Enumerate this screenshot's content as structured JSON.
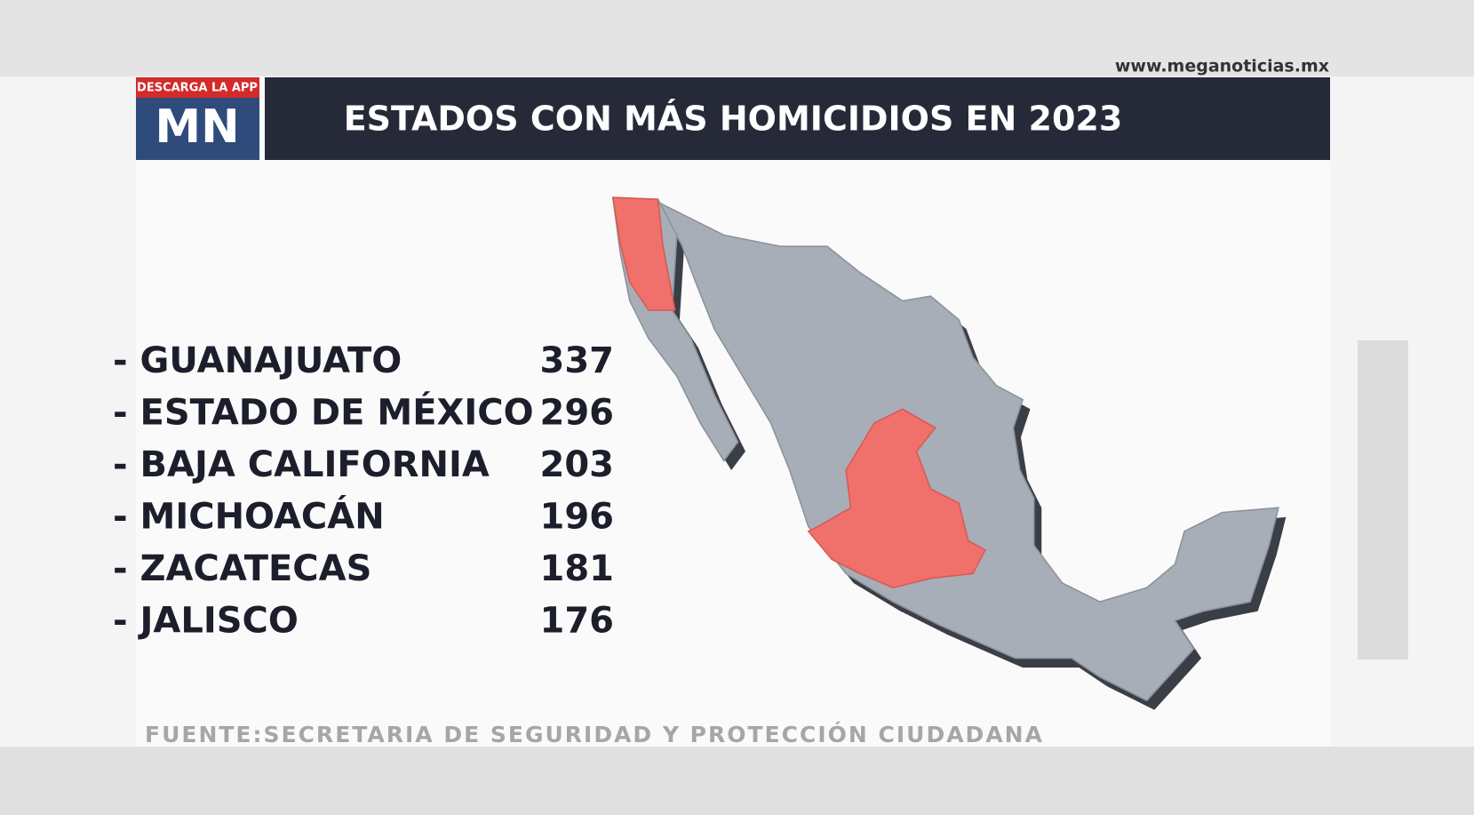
{
  "header": {
    "website": "www.meganoticias.mx",
    "badge": "DESCARGA LA APP",
    "logo": "MN",
    "title": "ESTADOS CON MÁS HOMICIDIOS EN 2023"
  },
  "list": [
    {
      "name": "- GUANAJUATO",
      "value": 337
    },
    {
      "name": "- ESTADO DE MÉXICO",
      "value": 296
    },
    {
      "name": "- BAJA CALIFORNIA",
      "value": 203
    },
    {
      "name": "- MICHOACÁN",
      "value": 196
    },
    {
      "name": "- ZACATECAS",
      "value": 181
    },
    {
      "name": "- JALISCO",
      "value": 176
    }
  ],
  "source": "FUENTE:SECRETARIA DE SEGURIDAD Y PROTECCIÓN CIUDADANA"
}
